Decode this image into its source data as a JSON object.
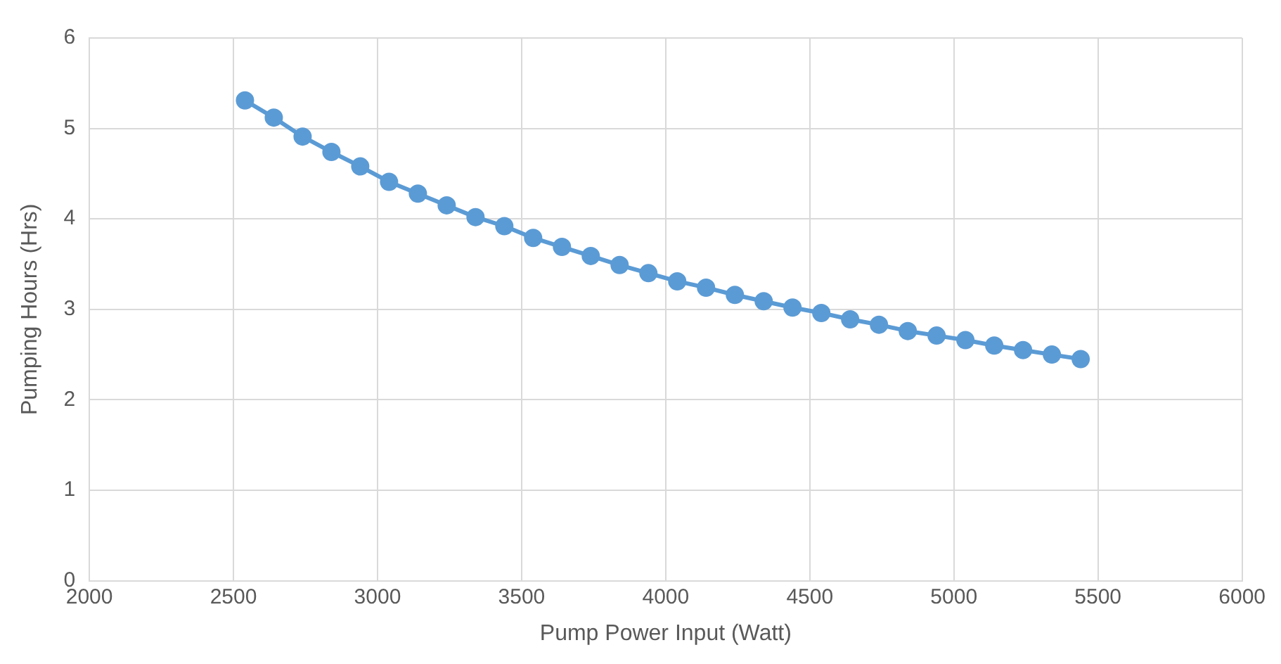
{
  "chart_data": {
    "type": "line",
    "xlabel": "Pump Power Input (Watt)",
    "ylabel": "Pumping Hours (Hrs)",
    "x": [
      2540,
      2640,
      2740,
      2840,
      2940,
      3040,
      3140,
      3240,
      3340,
      3440,
      3540,
      3640,
      3740,
      3840,
      3940,
      4040,
      4140,
      4240,
      4340,
      4440,
      4540,
      4640,
      4740,
      4840,
      4940,
      5040,
      5140,
      5240,
      5340,
      5440
    ],
    "series": [
      {
        "color": "#5b9bd5",
        "values": [
          5.31,
          5.12,
          4.91,
          4.74,
          4.58,
          4.41,
          4.28,
          4.15,
          4.02,
          3.92,
          3.79,
          3.69,
          3.59,
          3.49,
          3.4,
          3.31,
          3.24,
          3.16,
          3.09,
          3.02,
          2.96,
          2.89,
          2.83,
          2.76,
          2.71,
          2.66,
          2.6,
          2.55,
          2.5,
          2.45
        ]
      }
    ],
    "xlim": [
      2000,
      6000
    ],
    "xticks": [
      2000,
      2500,
      3000,
      3500,
      4000,
      4500,
      5000,
      5500,
      6000
    ],
    "ylim": [
      0,
      6
    ],
    "yticks": [
      0,
      1,
      2,
      3,
      4,
      5,
      6
    ],
    "grid": true,
    "marker": "circle",
    "line_style": "solid"
  }
}
